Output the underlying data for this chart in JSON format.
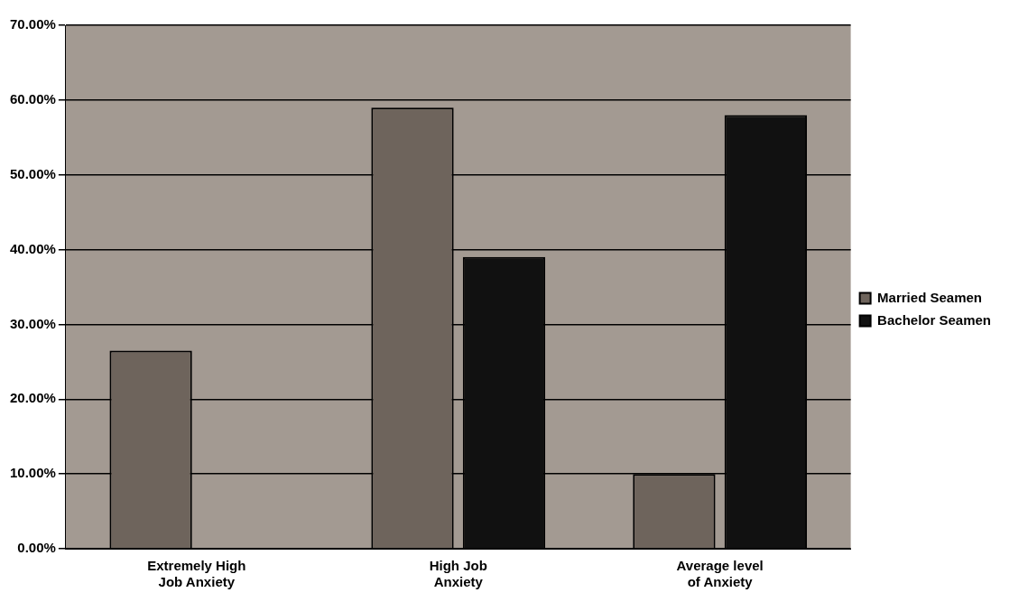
{
  "chart_data": {
    "type": "bar",
    "categories": [
      "Extremely High Job Anxiety",
      "High Job Anxiety",
      "Average level of Anxiety"
    ],
    "series": [
      {
        "name": "Married Seamen",
        "color": "#6e645c",
        "values": [
          26.5,
          59,
          10
        ]
      },
      {
        "name": "Bachelor Seamen",
        "color": "#111111",
        "values": [
          null,
          39,
          58
        ]
      }
    ],
    "ylim": [
      0,
      70
    ],
    "yticks": [
      {
        "value": 0,
        "label": "0.00%"
      },
      {
        "value": 10,
        "label": "10.00%"
      },
      {
        "value": 20,
        "label": "20.00%"
      },
      {
        "value": 30,
        "label": "30.00%"
      },
      {
        "value": 40,
        "label": "40.00%"
      },
      {
        "value": 50,
        "label": "50.00%"
      },
      {
        "value": 60,
        "label": "60.00%"
      },
      {
        "value": 70,
        "label": "70.00%"
      }
    ],
    "grid": "y",
    "legend": "right"
  }
}
